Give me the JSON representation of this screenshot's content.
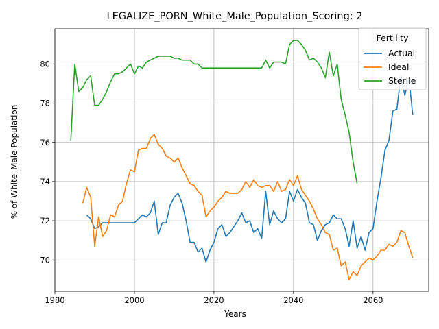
{
  "chart_data": {
    "type": "line",
    "title": "LEGALIZE_PORN_White_Male_Population_Scoring: 2",
    "xlabel": "Years",
    "ylabel": "% of White_Male Population",
    "xlim": [
      1980,
      2074
    ],
    "ylim": [
      68.4,
      81.8
    ],
    "xticks": [
      1980,
      2000,
      2020,
      2040,
      2060
    ],
    "yticks": [
      70,
      72,
      74,
      76,
      78,
      80
    ],
    "grid": true,
    "legend": {
      "title": "Fertility",
      "placement": "top-right"
    },
    "series": [
      {
        "name": "Actual",
        "color": "#1f77b4",
        "x": [
          1988,
          1989,
          1990,
          1991,
          1992,
          1993,
          1994,
          1995,
          1996,
          1997,
          1998,
          1999,
          2000,
          2001,
          2002,
          2003,
          2004,
          2005,
          2006,
          2007,
          2008,
          2009,
          2010,
          2011,
          2012,
          2013,
          2014,
          2015,
          2016,
          2017,
          2018,
          2019,
          2020,
          2021,
          2022,
          2023,
          2024,
          2025,
          2026,
          2027,
          2028,
          2029,
          2030,
          2031,
          2032,
          2033,
          2034,
          2035,
          2036,
          2037,
          2038,
          2039,
          2040,
          2041,
          2042,
          2043,
          2044,
          2045,
          2046,
          2047,
          2048,
          2049,
          2050,
          2051,
          2052,
          2053,
          2054,
          2055,
          2056,
          2057,
          2058,
          2059,
          2060,
          2061,
          2062,
          2063,
          2064,
          2065,
          2066,
          2067,
          2068,
          2069,
          2070
        ],
        "y": [
          72.3,
          72.1,
          71.6,
          71.7,
          71.9,
          71.9,
          71.9,
          71.9,
          71.9,
          71.9,
          71.9,
          71.9,
          71.9,
          72.1,
          72.3,
          72.2,
          72.4,
          73.0,
          71.3,
          71.9,
          71.9,
          72.8,
          73.2,
          73.4,
          72.9,
          72.0,
          70.9,
          70.9,
          70.4,
          70.6,
          69.9,
          70.5,
          70.9,
          71.6,
          71.8,
          71.2,
          71.4,
          71.7,
          72.0,
          72.4,
          71.9,
          72.0,
          71.4,
          71.6,
          71.1,
          73.5,
          71.8,
          72.5,
          72.1,
          71.9,
          72.1,
          73.5,
          73.0,
          73.6,
          73.2,
          72.9,
          71.9,
          71.8,
          71.0,
          71.5,
          71.8,
          71.9,
          72.3,
          72.1,
          72.1,
          71.6,
          70.7,
          72.0,
          70.6,
          71.2,
          70.5,
          71.4,
          71.6,
          73.0,
          74.2,
          75.6,
          76.1,
          77.6,
          77.7,
          79.4,
          78.4,
          79.3,
          77.4
        ]
      },
      {
        "name": "Ideal",
        "color": "#ff7f0e",
        "x": [
          1987,
          1988,
          1989,
          1990,
          1991,
          1992,
          1993,
          1994,
          1995,
          1996,
          1997,
          1998,
          1999,
          2000,
          2001,
          2002,
          2003,
          2004,
          2005,
          2006,
          2007,
          2008,
          2009,
          2010,
          2011,
          2012,
          2013,
          2014,
          2015,
          2016,
          2017,
          2018,
          2019,
          2020,
          2021,
          2022,
          2023,
          2024,
          2025,
          2026,
          2027,
          2028,
          2029,
          2030,
          2031,
          2032,
          2033,
          2034,
          2035,
          2036,
          2037,
          2038,
          2039,
          2040,
          2041,
          2042,
          2043,
          2044,
          2045,
          2046,
          2047,
          2048,
          2049,
          2050,
          2051,
          2052,
          2053,
          2054,
          2055,
          2056,
          2057,
          2058,
          2059,
          2060,
          2061,
          2062,
          2063,
          2064,
          2065,
          2066,
          2067,
          2068,
          2069,
          2070
        ],
        "y": [
          72.9,
          73.7,
          73.2,
          70.7,
          72.2,
          71.2,
          71.5,
          72.3,
          72.2,
          72.8,
          73.0,
          73.9,
          74.6,
          74.5,
          75.6,
          75.7,
          75.7,
          76.2,
          76.4,
          75.9,
          75.7,
          75.3,
          75.2,
          75.0,
          75.2,
          74.7,
          74.3,
          73.9,
          73.8,
          73.5,
          73.3,
          72.2,
          72.5,
          72.7,
          73.0,
          73.2,
          73.5,
          73.4,
          73.4,
          73.4,
          73.6,
          74.0,
          73.7,
          74.1,
          73.8,
          73.7,
          73.8,
          73.8,
          73.5,
          74.0,
          73.5,
          73.6,
          74.1,
          73.8,
          74.3,
          73.6,
          73.3,
          73.0,
          72.6,
          72.1,
          71.8,
          71.4,
          71.3,
          70.5,
          70.6,
          69.7,
          69.9,
          69.0,
          69.4,
          69.2,
          69.7,
          69.9,
          70.1,
          70.0,
          70.2,
          70.5,
          70.5,
          70.8,
          70.7,
          70.9,
          71.5,
          71.4,
          70.7,
          70.1
        ]
      },
      {
        "name": "Sterile",
        "color": "#2ca02c",
        "x": [
          1984,
          1985,
          1986,
          1987,
          1988,
          1989,
          1990,
          1991,
          1992,
          1993,
          1994,
          1995,
          1996,
          1997,
          1998,
          1999,
          2000,
          2001,
          2002,
          2003,
          2004,
          2005,
          2006,
          2007,
          2008,
          2009,
          2010,
          2011,
          2012,
          2013,
          2014,
          2015,
          2016,
          2017,
          2018,
          2019,
          2020,
          2021,
          2022,
          2023,
          2024,
          2025,
          2026,
          2027,
          2028,
          2029,
          2030,
          2031,
          2032,
          2033,
          2034,
          2035,
          2036,
          2037,
          2038,
          2039,
          2040,
          2041,
          2042,
          2043,
          2044,
          2045,
          2046,
          2047,
          2048,
          2049,
          2050,
          2051,
          2052,
          2053,
          2054,
          2055,
          2056
        ],
        "y": [
          76.1,
          80.0,
          78.6,
          78.8,
          79.2,
          79.4,
          77.9,
          77.9,
          78.2,
          78.6,
          79.1,
          79.5,
          79.5,
          79.6,
          79.8,
          80.0,
          79.5,
          79.9,
          79.8,
          80.1,
          80.2,
          80.3,
          80.4,
          80.4,
          80.4,
          80.4,
          80.3,
          80.3,
          80.2,
          80.2,
          80.2,
          80.0,
          80.0,
          79.8,
          79.8,
          79.8,
          79.8,
          79.8,
          79.8,
          79.8,
          79.8,
          79.8,
          79.8,
          79.8,
          79.8,
          79.8,
          79.8,
          79.8,
          79.8,
          80.2,
          79.8,
          80.1,
          80.1,
          80.1,
          80.0,
          81.0,
          81.2,
          81.2,
          81.0,
          80.7,
          80.2,
          80.3,
          80.1,
          79.8,
          79.3,
          80.6,
          79.4,
          80.0,
          78.2,
          77.4,
          76.5,
          75.0,
          73.9
        ]
      }
    ]
  }
}
